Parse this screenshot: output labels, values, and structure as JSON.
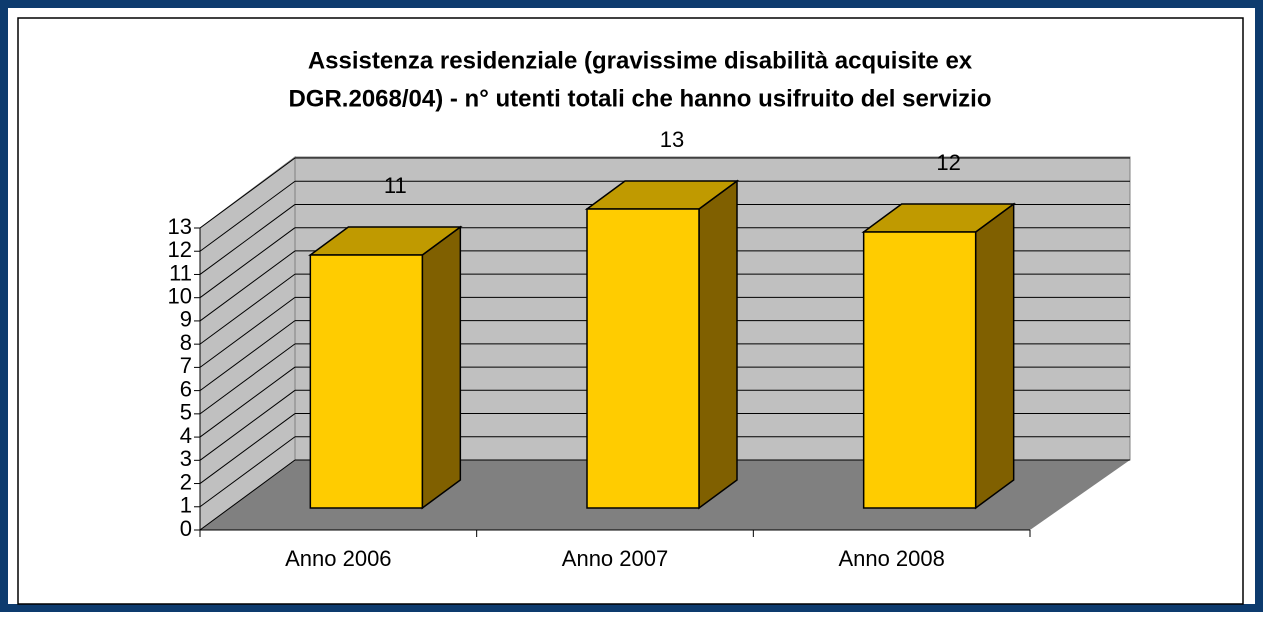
{
  "chart_data": {
    "type": "bar3d",
    "title": [
      "Assistenza residenziale (gravissime disabilità acquisite ex",
      "DGR.2068/04) - n° utenti totali che hanno usifruito del servizio"
    ],
    "categories": [
      "Anno 2006",
      "Anno 2007",
      "Anno 2008"
    ],
    "values": [
      11,
      13,
      12
    ],
    "color": "#ffcc00",
    "ylim": [
      0,
      13
    ],
    "yticks": [
      0,
      1,
      2,
      3,
      4,
      5,
      6,
      7,
      8,
      9,
      10,
      11,
      12,
      13
    ],
    "grid": true
  }
}
